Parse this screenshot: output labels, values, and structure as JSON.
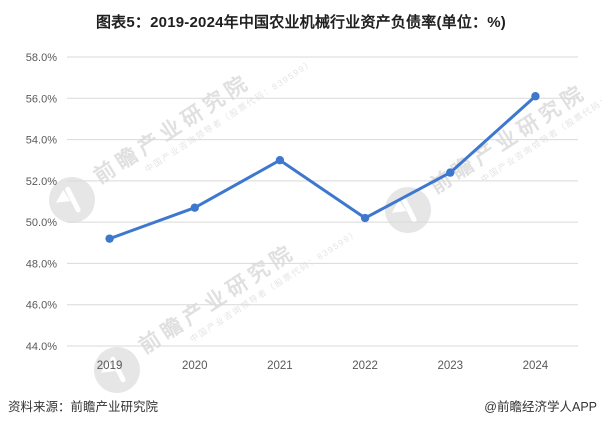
{
  "chart_data": {
    "type": "line",
    "title": "图表5：2019-2024年中国农业机械行业资产负债率(单位：%)",
    "categories": [
      "2019",
      "2020",
      "2021",
      "2022",
      "2023",
      "2024"
    ],
    "series": [
      {
        "name": "资产负债率",
        "values": [
          49.2,
          50.7,
          53.0,
          50.2,
          52.4,
          56.1
        ]
      }
    ],
    "xlabel": "",
    "ylabel": "",
    "ylim": [
      44,
      58
    ],
    "ytick_step": 2,
    "ytick_suffix": "%",
    "grid": true,
    "legend": "none",
    "line_color": "#3E78CE",
    "gridline_color": "#D9D9D9",
    "axis_label_color": "#595959"
  },
  "footer": {
    "source": "资料来源：前瞻产业研究院",
    "brand": "@前瞻经济学人APP"
  },
  "watermark": {
    "main": "前瞻产业研究院",
    "sub": "中国产业咨询领导者（股票代码：839599）"
  }
}
